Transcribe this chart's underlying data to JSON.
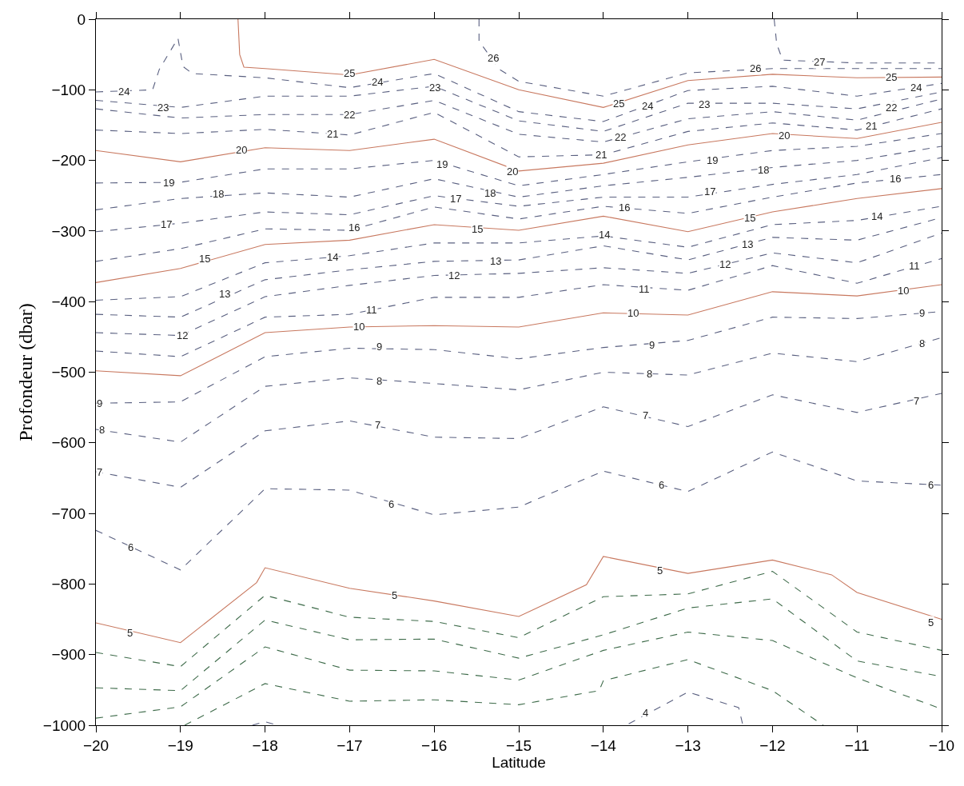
{
  "chart_data": {
    "type": "line",
    "xlabel": "Latitude",
    "ylabel": "Profondeur (dbar)",
    "x": [
      -20,
      -19,
      -18,
      -17,
      -16,
      -15,
      -14,
      -13,
      -12,
      -11,
      -10
    ],
    "xlim": [
      -20,
      -10
    ],
    "xticks": [
      -20,
      -19,
      -18,
      -17,
      -16,
      -15,
      -14,
      -13,
      -12,
      -11,
      -10
    ],
    "ylim": [
      -1000,
      0
    ],
    "yticks": [
      -1000,
      -900,
      -800,
      -700,
      -600,
      -500,
      -400,
      -300,
      -200,
      -100,
      0
    ],
    "marker": "none",
    "series": [
      {
        "color": "#5a6080",
        "line_style": "dashed",
        "x": [
          -11.98,
          -11.95,
          -11.88,
          -11,
          -10
        ],
        "values": [
          0,
          -35,
          -58,
          -62,
          -62
        ]
      },
      {
        "color": "#5a6080",
        "line_style": "dashed",
        "x": [
          -15.47,
          -15.47,
          -15.23,
          -15,
          -14,
          -13,
          -12,
          -11,
          -10
        ],
        "values": [
          0,
          -31,
          -71,
          -88,
          -109,
          -76,
          -70,
          -70,
          -70
        ]
      },
      {
        "color": "#c8785f",
        "line_style": "solid",
        "x": [
          -18.32,
          -18.3,
          -18.25,
          -18,
          -17,
          -16,
          -15,
          -14,
          -13,
          -12,
          -11,
          -10
        ],
        "values": [
          0,
          -50,
          -68,
          -70,
          -79,
          -57,
          -100,
          -125,
          -87,
          -78,
          -83,
          -82
        ]
      },
      {
        "color": "#5a6080",
        "line_style": "dashed",
        "x": [
          -20,
          -19.33,
          -19.25,
          -19.03,
          -18.97,
          -18.86,
          -18,
          -17,
          -16,
          -15,
          -14,
          -13,
          -12,
          -11,
          -10
        ],
        "values": [
          -103,
          -100,
          -71,
          -27,
          -67,
          -77,
          -83,
          -97,
          -77,
          -131,
          -145,
          -101,
          -95,
          -109,
          -91
        ]
      },
      {
        "color": "#5a6080",
        "line_style": "dashed",
        "values": [
          -115,
          -125,
          -109,
          -109,
          -95,
          -144,
          -159,
          -119,
          -119,
          -127,
          -103
        ]
      },
      {
        "color": "#5a6080",
        "line_style": "dashed",
        "values": [
          -127,
          -140,
          -135,
          -135,
          -115,
          -163,
          -174,
          -141,
          -131,
          -143,
          -113
        ]
      },
      {
        "color": "#5a6080",
        "line_style": "dashed",
        "values": [
          -157,
          -162,
          -156,
          -164,
          -132,
          -195,
          -192,
          -159,
          -147,
          -157,
          -127
        ]
      },
      {
        "color": "#c8785f",
        "line_style": "solid",
        "values": [
          -186,
          -202,
          -182,
          -186,
          -170,
          -215,
          -204,
          -178,
          -162,
          -169,
          -146
        ]
      },
      {
        "color": "#5a6080",
        "line_style": "dashed",
        "values": [
          -232,
          -231,
          -212,
          -212,
          -200,
          -236,
          -220,
          -202,
          -186,
          -180,
          -162
        ]
      },
      {
        "color": "#5a6080",
        "line_style": "dashed",
        "values": [
          -270,
          -254,
          -246,
          -252,
          -226,
          -252,
          -236,
          -224,
          -210,
          -200,
          -180
        ]
      },
      {
        "color": "#5a6080",
        "line_style": "dashed",
        "values": [
          -301,
          -289,
          -273,
          -277,
          -250,
          -265,
          -252,
          -252,
          -234,
          -220,
          -196
        ]
      },
      {
        "color": "#5a6080",
        "line_style": "dashed",
        "values": [
          -343,
          -325,
          -297,
          -299,
          -266,
          -283,
          -265,
          -275,
          -252,
          -232,
          -220
        ]
      },
      {
        "color": "#c8785f",
        "line_style": "solid",
        "values": [
          -373,
          -353,
          -319,
          -313,
          -291,
          -299,
          -279,
          -301,
          -273,
          -254,
          -240
        ]
      },
      {
        "color": "#5a6080",
        "line_style": "dashed",
        "values": [
          -398,
          -393,
          -345,
          -335,
          -317,
          -317,
          -307,
          -323,
          -291,
          -285,
          -265
        ]
      },
      {
        "color": "#5a6080",
        "line_style": "dashed",
        "values": [
          -418,
          -422,
          -369,
          -355,
          -343,
          -341,
          -321,
          -341,
          -309,
          -313,
          -281
        ]
      },
      {
        "color": "#5a6080",
        "line_style": "dashed",
        "values": [
          -444,
          -448,
          -393,
          -377,
          -363,
          -360,
          -352,
          -360,
          -331,
          -345,
          -303
        ]
      },
      {
        "color": "#5a6080",
        "line_style": "dashed",
        "values": [
          -470,
          -478,
          -422,
          -418,
          -394,
          -394,
          -376,
          -384,
          -349,
          -374,
          -339
        ]
      },
      {
        "color": "#c8785f",
        "line_style": "solid",
        "values": [
          -498,
          -505,
          -444,
          -436,
          -434,
          -436,
          -416,
          -419,
          -386,
          -392,
          -376
        ]
      },
      {
        "color": "#5a6080",
        "line_style": "dashed",
        "values": [
          -544,
          -542,
          -478,
          -466,
          -468,
          -481,
          -465,
          -455,
          -422,
          -424,
          -414
        ]
      },
      {
        "color": "#5a6080",
        "line_style": "dashed",
        "values": [
          -581,
          -599,
          -520,
          -508,
          -516,
          -525,
          -500,
          -504,
          -473,
          -485,
          -451
        ]
      },
      {
        "color": "#5a6080",
        "line_style": "dashed",
        "values": [
          -641,
          -663,
          -583,
          -569,
          -592,
          -594,
          -549,
          -577,
          -532,
          -557,
          -530
        ]
      },
      {
        "color": "#5a6080",
        "line_style": "dashed",
        "values": [
          -724,
          -780,
          -665,
          -667,
          -702,
          -691,
          -640,
          -669,
          -613,
          -654,
          -660
        ]
      },
      {
        "color": "#c8785f",
        "line_style": "solid",
        "x": [
          -20,
          -19,
          -18.1,
          -18,
          -17,
          -16,
          -15,
          -14.2,
          -14,
          -13,
          -12,
          -11.3,
          -11,
          -10
        ],
        "values": [
          -855,
          -883,
          -798,
          -777,
          -806,
          -824,
          -846,
          -801,
          -761,
          -785,
          -766,
          -787,
          -812,
          -850
        ]
      },
      {
        "color": "#3e6b4a",
        "line_style": "dashed",
        "values": [
          -897,
          -917,
          -816,
          -847,
          -853,
          -876,
          -818,
          -814,
          -782,
          -868,
          -894
        ]
      },
      {
        "color": "#3e6b4a",
        "line_style": "dashed",
        "values": [
          -947,
          -951,
          -851,
          -879,
          -878,
          -905,
          -872,
          -834,
          -821,
          -909,
          -931
        ]
      },
      {
        "color": "#3e6b4a",
        "line_style": "dashed",
        "values": [
          -990,
          -974,
          -889,
          -922,
          -923,
          -936,
          -894,
          -868,
          -880,
          -933,
          -977
        ]
      },
      {
        "color": "#3e6b4a",
        "line_style": "dashed",
        "x": [
          -18.95,
          -18,
          -17,
          -16,
          -15,
          -14.05,
          -14,
          -13,
          -12,
          -11.4
        ],
        "values": [
          -1000,
          -941,
          -966,
          -964,
          -971,
          -951,
          -937,
          -907,
          -951,
          -1000
        ]
      },
      {
        "color": "#5a6080",
        "line_style": "dashed",
        "x": [
          -18.15,
          -18,
          -17.85
        ],
        "values": [
          -1000,
          -995,
          -1000
        ]
      },
      {
        "color": "#5a6080",
        "line_style": "dashed",
        "x": [
          -13.7,
          -13,
          -12.4,
          -12.35
        ],
        "values": [
          -998,
          -953,
          -975,
          -1000
        ]
      }
    ],
    "annotations": [
      {
        "text": "27",
        "x": -11.45,
        "y": -61
      },
      {
        "text": "26",
        "x": -15.3,
        "y": -55
      },
      {
        "text": "26",
        "x": -12.2,
        "y": -70
      },
      {
        "text": "25",
        "x": -17.0,
        "y": -77
      },
      {
        "text": "25",
        "x": -13.82,
        "y": -119
      },
      {
        "text": "25",
        "x": -10.6,
        "y": -82
      },
      {
        "text": "24",
        "x": -19.67,
        "y": -103
      },
      {
        "text": "24",
        "x": -16.67,
        "y": -89
      },
      {
        "text": "24",
        "x": -13.48,
        "y": -123
      },
      {
        "text": "24",
        "x": -10.3,
        "y": -97
      },
      {
        "text": "23",
        "x": -19.21,
        "y": -125
      },
      {
        "text": "23",
        "x": -15.99,
        "y": -97
      },
      {
        "text": "23",
        "x": -12.81,
        "y": -121
      },
      {
        "text": "22",
        "x": -17.0,
        "y": -135
      },
      {
        "text": "22",
        "x": -13.8,
        "y": -167
      },
      {
        "text": "22",
        "x": -10.6,
        "y": -125
      },
      {
        "text": "21",
        "x": -17.2,
        "y": -162
      },
      {
        "text": "21",
        "x": -14.03,
        "y": -192
      },
      {
        "text": "21",
        "x": -10.83,
        "y": -151
      },
      {
        "text": "20",
        "x": -18.28,
        "y": -185
      },
      {
        "text": "20",
        "x": -15.08,
        "y": -216
      },
      {
        "text": "20",
        "x": -11.86,
        "y": -165
      },
      {
        "text": "19",
        "x": -19.14,
        "y": -232
      },
      {
        "text": "19",
        "x": -15.91,
        "y": -206
      },
      {
        "text": "19",
        "x": -12.71,
        "y": -200
      },
      {
        "text": "18",
        "x": -18.55,
        "y": -248
      },
      {
        "text": "18",
        "x": -15.34,
        "y": -246
      },
      {
        "text": "18",
        "x": -12.11,
        "y": -214
      },
      {
        "text": "17",
        "x": -19.17,
        "y": -291
      },
      {
        "text": "17",
        "x": -15.75,
        "y": -254
      },
      {
        "text": "17",
        "x": -12.74,
        "y": -244
      },
      {
        "text": "16",
        "x": -16.95,
        "y": -295
      },
      {
        "text": "16",
        "x": -13.75,
        "y": -267
      },
      {
        "text": "16",
        "x": -10.55,
        "y": -226
      },
      {
        "text": "15",
        "x": -18.71,
        "y": -339
      },
      {
        "text": "15",
        "x": -15.49,
        "y": -297
      },
      {
        "text": "15",
        "x": -12.27,
        "y": -281
      },
      {
        "text": "14",
        "x": -17.2,
        "y": -337
      },
      {
        "text": "14",
        "x": -13.99,
        "y": -305
      },
      {
        "text": "14",
        "x": -10.77,
        "y": -279
      },
      {
        "text": "13",
        "x": -18.48,
        "y": -389
      },
      {
        "text": "13",
        "x": -15.27,
        "y": -343
      },
      {
        "text": "13",
        "x": -12.3,
        "y": -319
      },
      {
        "text": "12",
        "x": -18.98,
        "y": -448
      },
      {
        "text": "12",
        "x": -15.77,
        "y": -363
      },
      {
        "text": "12",
        "x": -12.56,
        "y": -347
      },
      {
        "text": "11",
        "x": -16.74,
        "y": -412
      },
      {
        "text": "11",
        "x": -13.52,
        "y": -382
      },
      {
        "text": "11",
        "x": -10.32,
        "y": -349
      },
      {
        "text": "10",
        "x": -16.89,
        "y": -436
      },
      {
        "text": "10",
        "x": -13.65,
        "y": -416
      },
      {
        "text": "10",
        "x": -10.45,
        "y": -384
      },
      {
        "text": "9",
        "x": -19.96,
        "y": -544
      },
      {
        "text": "9",
        "x": -16.65,
        "y": -464
      },
      {
        "text": "9",
        "x": -13.43,
        "y": -461
      },
      {
        "text": "9",
        "x": -10.23,
        "y": -416
      },
      {
        "text": "8",
        "x": -19.93,
        "y": -581
      },
      {
        "text": "8",
        "x": -16.65,
        "y": -512
      },
      {
        "text": "8",
        "x": -13.45,
        "y": -502
      },
      {
        "text": "8",
        "x": -10.23,
        "y": -459
      },
      {
        "text": "7",
        "x": -19.96,
        "y": -641
      },
      {
        "text": "7",
        "x": -16.67,
        "y": -575
      },
      {
        "text": "7",
        "x": -13.5,
        "y": -561
      },
      {
        "text": "7",
        "x": -10.3,
        "y": -541
      },
      {
        "text": "6",
        "x": -19.59,
        "y": -748
      },
      {
        "text": "6",
        "x": -16.51,
        "y": -687
      },
      {
        "text": "6",
        "x": -13.31,
        "y": -660
      },
      {
        "text": "6",
        "x": -10.13,
        "y": -660
      },
      {
        "text": "5",
        "x": -19.6,
        "y": -869
      },
      {
        "text": "5",
        "x": -16.47,
        "y": -816
      },
      {
        "text": "5",
        "x": -13.33,
        "y": -781
      },
      {
        "text": "5",
        "x": -10.13,
        "y": -854
      },
      {
        "text": "4",
        "x": -13.5,
        "y": -983
      }
    ]
  }
}
